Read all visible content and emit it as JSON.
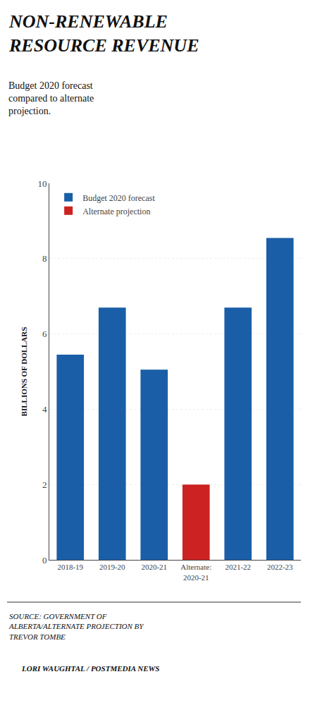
{
  "chart_data": {
    "type": "bar",
    "title": "NON-RENEWABLE\nRESOURCE REVENUE",
    "subtitle": "Budget 2020 forecast\ncompared to alternate\nprojection.",
    "categories": [
      "2018-19",
      "2019-20",
      "2020-21",
      "Alternate:\n2020-21",
      "2021-22",
      "2022-23"
    ],
    "series": [
      {
        "name": "Budget 2020 forecast",
        "color": "#1a5ea8",
        "values": [
          5.45,
          6.7,
          5.05,
          null,
          6.7,
          8.55
        ]
      },
      {
        "name": "Alternate projection",
        "color": "#cc2222",
        "values": [
          null,
          null,
          null,
          2.0,
          null,
          null
        ]
      }
    ],
    "ylabel": "BILLIONS OF DOLLARS",
    "ylim": [
      0,
      10
    ],
    "yticks": [
      0,
      2,
      4,
      6,
      8,
      10
    ],
    "grid": true,
    "legend": "upper left",
    "annotations": [
      "SOURCE: GOVERNMENT OF\nALBERTA/ALTERNATE PROJECTION BY\nTREVOR TOMBE",
      "LORI WAUGHTAL / POSTMEDIA NEWS"
    ]
  }
}
